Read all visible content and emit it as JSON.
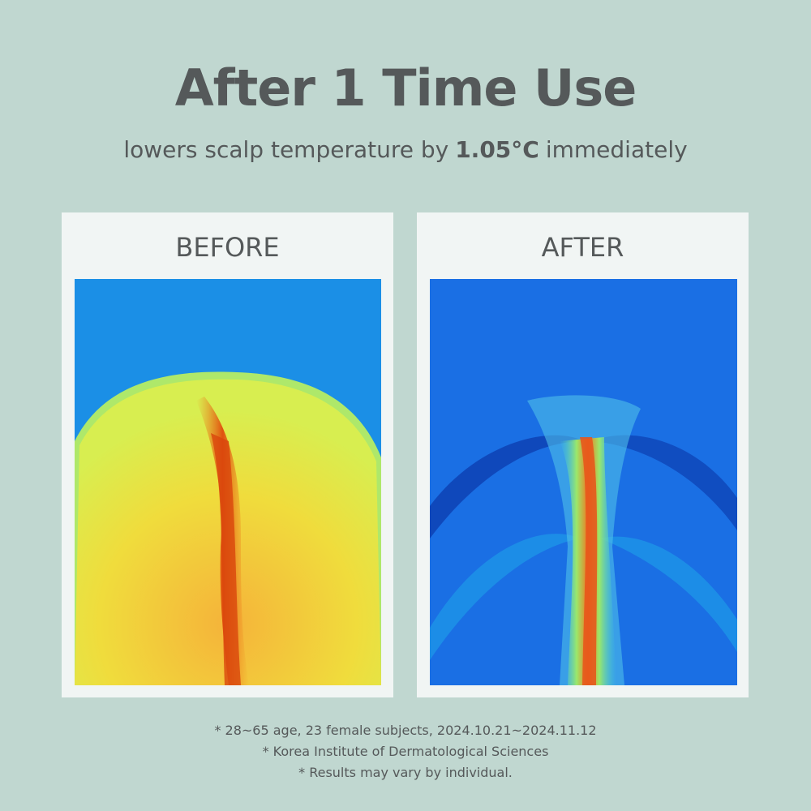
{
  "header": {
    "title": "After 1 Time Use",
    "subtitle": {
      "before": "lowers scalp temperature by",
      "highlight": "1.05°C",
      "after": "immediately"
    }
  },
  "panels": [
    {
      "label": "BEFORE"
    },
    {
      "label": "AFTER"
    }
  ],
  "footnotes": [
    "* 28~65 age, 23 female subjects, 2024.10.21~2024.11.12",
    "* Korea Institute of Dermatological Sciences",
    "* Results may vary by individual."
  ]
}
